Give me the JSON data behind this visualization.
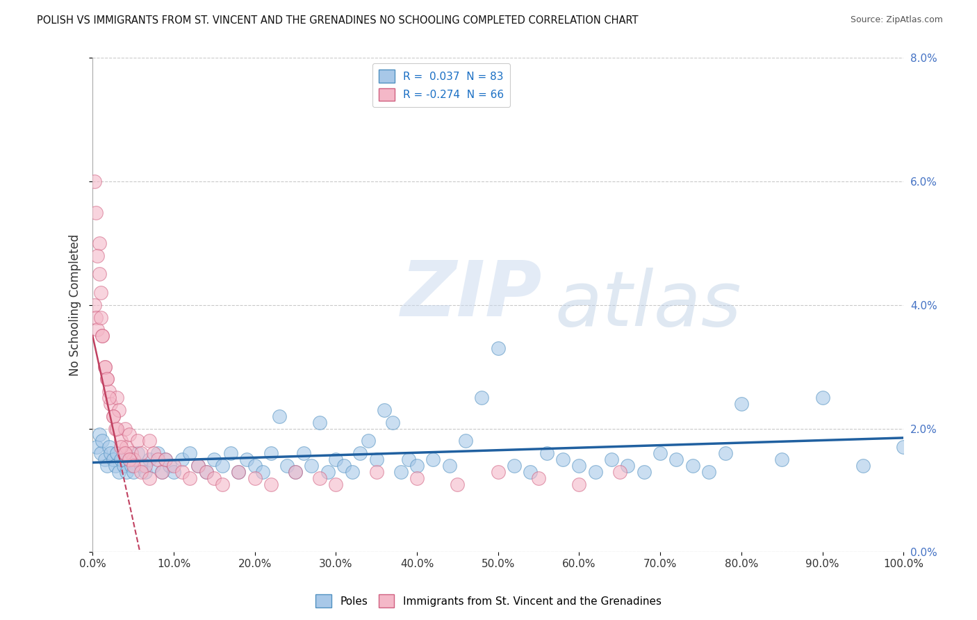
{
  "title": "POLISH VS IMMIGRANTS FROM ST. VINCENT AND THE GRENADINES NO SCHOOLING COMPLETED CORRELATION CHART",
  "source": "Source: ZipAtlas.com",
  "ylabel": "No Schooling Completed",
  "xlabel_ticks": [
    "0.0%",
    "10.0%",
    "20.0%",
    "30.0%",
    "40.0%",
    "50.0%",
    "60.0%",
    "70.0%",
    "80.0%",
    "90.0%",
    "100.0%"
  ],
  "ytick_labels": [
    "0.0%",
    "2.0%",
    "4.0%",
    "6.0%",
    "8.0%"
  ],
  "ylim": [
    0,
    0.08
  ],
  "xlim": [
    0,
    1.0
  ],
  "r_blue": 0.037,
  "n_blue": 83,
  "r_pink": -0.274,
  "n_pink": 66,
  "blue_color": "#a8c8e8",
  "pink_color": "#f4b8c8",
  "blue_edge_color": "#5090c0",
  "pink_edge_color": "#d06080",
  "blue_line_color": "#2060a0",
  "pink_line_color": "#c04060",
  "legend_label_blue": "Poles",
  "legend_label_pink": "Immigrants from St. Vincent and the Grenadines",
  "background_color": "#ffffff",
  "grid_color": "#bbbbbb",
  "blue_scatter_x": [
    0.005,
    0.008,
    0.01,
    0.012,
    0.015,
    0.018,
    0.02,
    0.022,
    0.025,
    0.028,
    0.03,
    0.032,
    0.035,
    0.038,
    0.04,
    0.042,
    0.045,
    0.048,
    0.05,
    0.055,
    0.06,
    0.065,
    0.07,
    0.075,
    0.08,
    0.085,
    0.09,
    0.095,
    0.1,
    0.11,
    0.12,
    0.13,
    0.14,
    0.15,
    0.16,
    0.17,
    0.18,
    0.19,
    0.2,
    0.21,
    0.22,
    0.23,
    0.24,
    0.25,
    0.26,
    0.27,
    0.28,
    0.29,
    0.3,
    0.31,
    0.32,
    0.33,
    0.34,
    0.35,
    0.36,
    0.37,
    0.38,
    0.39,
    0.4,
    0.42,
    0.44,
    0.46,
    0.48,
    0.5,
    0.52,
    0.54,
    0.56,
    0.58,
    0.6,
    0.62,
    0.64,
    0.66,
    0.68,
    0.7,
    0.72,
    0.74,
    0.76,
    0.78,
    0.8,
    0.85,
    0.9,
    0.95,
    1.0
  ],
  "blue_scatter_y": [
    0.017,
    0.019,
    0.016,
    0.018,
    0.015,
    0.014,
    0.017,
    0.016,
    0.015,
    0.014,
    0.016,
    0.013,
    0.015,
    0.014,
    0.016,
    0.013,
    0.015,
    0.014,
    0.013,
    0.016,
    0.014,
    0.013,
    0.015,
    0.014,
    0.016,
    0.013,
    0.015,
    0.014,
    0.013,
    0.015,
    0.016,
    0.014,
    0.013,
    0.015,
    0.014,
    0.016,
    0.013,
    0.015,
    0.014,
    0.013,
    0.016,
    0.022,
    0.014,
    0.013,
    0.016,
    0.014,
    0.021,
    0.013,
    0.015,
    0.014,
    0.013,
    0.016,
    0.018,
    0.015,
    0.023,
    0.021,
    0.013,
    0.015,
    0.014,
    0.015,
    0.014,
    0.018,
    0.025,
    0.033,
    0.014,
    0.013,
    0.016,
    0.015,
    0.014,
    0.013,
    0.015,
    0.014,
    0.013,
    0.016,
    0.015,
    0.014,
    0.013,
    0.016,
    0.024,
    0.015,
    0.025,
    0.014,
    0.017
  ],
  "pink_scatter_x": [
    0.002,
    0.004,
    0.006,
    0.008,
    0.01,
    0.012,
    0.015,
    0.018,
    0.02,
    0.022,
    0.025,
    0.028,
    0.03,
    0.032,
    0.035,
    0.038,
    0.04,
    0.042,
    0.045,
    0.048,
    0.05,
    0.055,
    0.06,
    0.065,
    0.07,
    0.075,
    0.08,
    0.085,
    0.09,
    0.1,
    0.11,
    0.12,
    0.13,
    0.14,
    0.15,
    0.16,
    0.18,
    0.2,
    0.22,
    0.25,
    0.28,
    0.3,
    0.35,
    0.4,
    0.45,
    0.5,
    0.55,
    0.6,
    0.65,
    0.002,
    0.004,
    0.006,
    0.008,
    0.01,
    0.012,
    0.015,
    0.018,
    0.02,
    0.025,
    0.03,
    0.035,
    0.04,
    0.045,
    0.05,
    0.06,
    0.07
  ],
  "pink_scatter_y": [
    0.04,
    0.038,
    0.036,
    0.05,
    0.042,
    0.035,
    0.03,
    0.028,
    0.026,
    0.024,
    0.022,
    0.02,
    0.025,
    0.023,
    0.018,
    0.016,
    0.02,
    0.017,
    0.019,
    0.016,
    0.015,
    0.018,
    0.016,
    0.014,
    0.018,
    0.016,
    0.015,
    0.013,
    0.015,
    0.014,
    0.013,
    0.012,
    0.014,
    0.013,
    0.012,
    0.011,
    0.013,
    0.012,
    0.011,
    0.013,
    0.012,
    0.011,
    0.013,
    0.012,
    0.011,
    0.013,
    0.012,
    0.011,
    0.013,
    0.06,
    0.055,
    0.048,
    0.045,
    0.038,
    0.035,
    0.03,
    0.028,
    0.025,
    0.022,
    0.02,
    0.017,
    0.016,
    0.015,
    0.014,
    0.013,
    0.012
  ],
  "pink_line_x_end": 0.05
}
